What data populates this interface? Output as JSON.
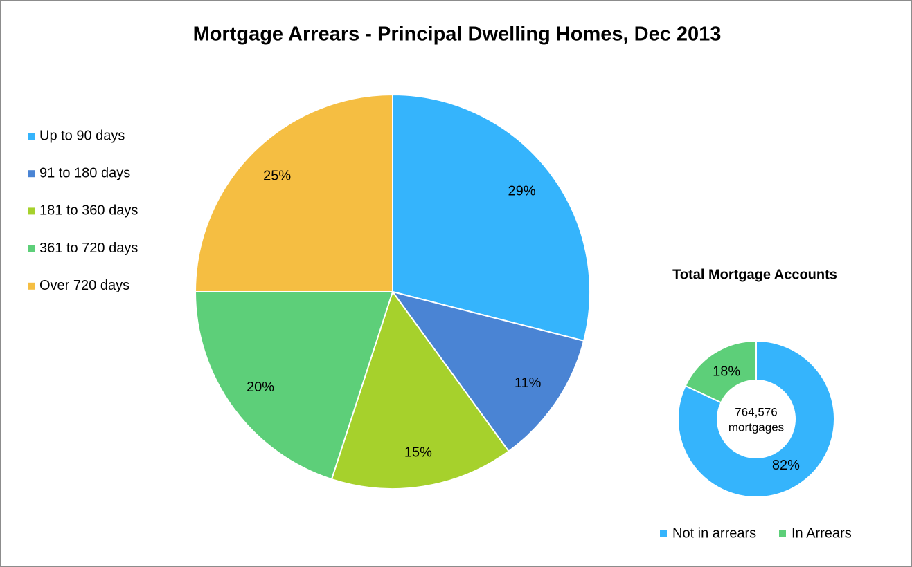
{
  "chart_data": [
    {
      "type": "pie",
      "title": "Mortgage Arrears - Principal Dwelling Homes, Dec 2013",
      "categories": [
        "Up to 90 days",
        "91 to 180 days",
        "181 to 360 days",
        "361 to 720 days",
        "Over 720 days"
      ],
      "values": [
        29,
        11,
        15,
        20,
        25
      ],
      "value_labels": [
        "29%",
        "11%",
        "15%",
        "20%",
        "25%"
      ],
      "colors": [
        "#35b4fc",
        "#4a84d4",
        "#a6d12c",
        "#5dcf79",
        "#f5be42"
      ],
      "legend": "left"
    },
    {
      "type": "donut",
      "title": "Total Mortgage Accounts",
      "categories": [
        "Not in arrears",
        "In Arrears"
      ],
      "values": [
        82,
        18
      ],
      "value_labels": [
        "82%",
        "18%"
      ],
      "colors": [
        "#35b4fc",
        "#5dcf79"
      ],
      "annotations": [
        "764,576",
        "mortgages"
      ],
      "legend": "bottom"
    }
  ]
}
